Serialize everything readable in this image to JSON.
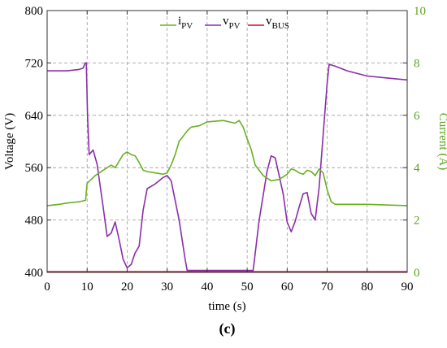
{
  "chart_data": {
    "type": "line",
    "panel_label": "(c)",
    "xlabel": "time (s)",
    "ylabel_left": "Voltage (V)",
    "ylabel_right": "Current (A)",
    "xlim": [
      0,
      90
    ],
    "ylim_left": [
      400,
      800
    ],
    "ylim_right": [
      0,
      10
    ],
    "x_ticks": [
      "0",
      "10",
      "20",
      "30",
      "40",
      "50",
      "60",
      "70",
      "80",
      "90"
    ],
    "y_ticks_left": [
      "400",
      "480",
      "560",
      "640",
      "720",
      "800"
    ],
    "y_ticks_right": [
      "0",
      "2",
      "4",
      "6",
      "8",
      "10"
    ],
    "grid": true,
    "legend_position": "top-center",
    "colors": {
      "i_pv": "#6ab024",
      "v_pv": "#8a2ea8",
      "v_bus": "#c8102e",
      "axis": "#333333",
      "right_axis": "#5aa51e"
    },
    "series": [
      {
        "name": "iPV",
        "legend_main": "i",
        "legend_sub": "PV",
        "axis": "right",
        "x": [
          0,
          3,
          5,
          8,
          9.6,
          10,
          12,
          14,
          16,
          17,
          18,
          19,
          20,
          21,
          22,
          23,
          24,
          25,
          27,
          29,
          30,
          31,
          32,
          33,
          35,
          36,
          38,
          40,
          44,
          47,
          48,
          49,
          50,
          51,
          52,
          54,
          56,
          58,
          60,
          61,
          62,
          63,
          64,
          65,
          66,
          67,
          68,
          69,
          70,
          71,
          72,
          80,
          90
        ],
        "y": [
          2.55,
          2.6,
          2.65,
          2.7,
          2.75,
          3.4,
          3.7,
          3.9,
          4.1,
          4.0,
          4.25,
          4.5,
          4.6,
          4.5,
          4.45,
          4.2,
          3.9,
          3.85,
          3.8,
          3.75,
          3.8,
          4.1,
          4.5,
          5.0,
          5.4,
          5.55,
          5.6,
          5.75,
          5.8,
          5.7,
          5.8,
          5.55,
          5.1,
          4.7,
          4.1,
          3.7,
          3.5,
          3.55,
          3.75,
          3.95,
          3.9,
          3.8,
          3.75,
          3.9,
          3.85,
          3.7,
          3.95,
          3.8,
          3.15,
          2.7,
          2.6,
          2.6,
          2.55
        ]
      },
      {
        "name": "vPV",
        "legend_main": "v",
        "legend_sub": "PV",
        "axis": "left",
        "x": [
          0,
          5,
          8,
          9,
          9.5,
          9.8,
          10.1,
          10.5,
          11.5,
          12.5,
          14,
          15,
          16,
          17,
          18,
          19,
          20,
          21,
          22,
          23,
          24,
          25,
          27,
          29,
          30,
          31,
          33,
          34.5,
          35,
          40,
          45,
          50,
          51.5,
          53,
          55,
          56,
          57,
          58,
          59,
          60,
          61,
          62,
          63,
          64,
          65,
          66,
          67,
          68,
          69,
          70,
          70.5,
          72,
          75,
          80,
          85,
          90
        ],
        "y": [
          708,
          708,
          710,
          712,
          720,
          720,
          640,
          580,
          587,
          565,
          500,
          455,
          460,
          477,
          450,
          420,
          407,
          412,
          430,
          440,
          495,
          528,
          535,
          545,
          548,
          540,
          480,
          420,
          403,
          403,
          403,
          403,
          403,
          480,
          555,
          578,
          575,
          548,
          520,
          477,
          462,
          478,
          500,
          520,
          522,
          490,
          480,
          530,
          610,
          690,
          718,
          715,
          708,
          700,
          697,
          694
        ]
      },
      {
        "name": "vBUS",
        "legend_main": "v",
        "legend_sub": "BUS",
        "axis": "left",
        "x": [
          0,
          90
        ],
        "y": [
          401,
          401
        ]
      }
    ]
  }
}
